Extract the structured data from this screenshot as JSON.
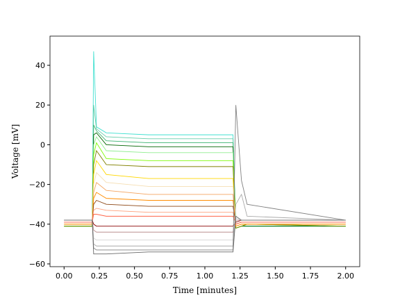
{
  "chart_data": {
    "type": "line",
    "x_label": "Time [minutes]",
    "y_label": "Voltage [mV]",
    "xlim": [
      -0.1,
      2.1
    ],
    "ylim": [
      -61.4,
      54.7
    ],
    "xticks": [
      {
        "value": 0,
        "label": "0.00"
      },
      {
        "value": 0.25,
        "label": "0.25"
      },
      {
        "value": 0.5,
        "label": "0.50"
      },
      {
        "value": 0.75,
        "label": "0.75"
      },
      {
        "value": 1,
        "label": "1.00"
      },
      {
        "value": 1.25,
        "label": "1.25"
      },
      {
        "value": 1.5,
        "label": "1.50"
      },
      {
        "value": 1.75,
        "label": "1.75"
      },
      {
        "value": 2,
        "label": "2.00"
      }
    ],
    "yticks": [
      {
        "value": -60,
        "label": "−60"
      },
      {
        "value": -40,
        "label": "−40"
      },
      {
        "value": -20,
        "label": "−20"
      },
      0,
      20,
      40
    ],
    "x": [
      0,
      0.2,
      0.21,
      0.23,
      0.3,
      0.6,
      1.2,
      1.22,
      1.26,
      1.3,
      2.0
    ],
    "series": [
      {
        "color": "#40e0d0",
        "values": [
          -41,
          -41,
          47,
          9,
          6,
          5,
          5,
          -42,
          -41,
          -41,
          -41
        ]
      },
      {
        "color": "#66cdaa",
        "values": [
          -41,
          -41,
          20,
          8,
          4,
          3,
          3,
          -42,
          -41,
          -41,
          -41
        ]
      },
      {
        "color": "#3cb371",
        "values": [
          -41,
          -41,
          10,
          7,
          2,
          1,
          1,
          -42,
          -41,
          -41,
          -41
        ]
      },
      {
        "color": "#006400",
        "values": [
          -41,
          -41,
          5,
          6,
          0,
          -1,
          -1,
          -42,
          -41,
          -41,
          -41
        ]
      },
      {
        "color": "#90ee90",
        "values": [
          -41,
          -41,
          0,
          4,
          -3,
          -4,
          -4,
          -42,
          -41,
          -40,
          -41
        ]
      },
      {
        "color": "#7cfc00",
        "values": [
          -41,
          -41,
          -5,
          1,
          -7,
          -8,
          -8,
          -42,
          -41,
          -40,
          -41
        ]
      },
      {
        "color": "#808000",
        "values": [
          -41,
          -41,
          -10,
          -3,
          -10,
          -11,
          -11,
          -42,
          -41,
          -40,
          -41
        ]
      },
      {
        "color": "#ffd700",
        "values": [
          -40,
          -40,
          -15,
          -8,
          -15,
          -17,
          -17,
          -41,
          -40,
          -40,
          -40
        ]
      },
      {
        "color": "#f5deb3",
        "values": [
          -40,
          -40,
          -20,
          -14,
          -19,
          -21,
          -21,
          -41,
          -40,
          -40,
          -40
        ]
      },
      {
        "color": "#f4a460",
        "values": [
          -40,
          -40,
          -24,
          -19,
          -23,
          -25,
          -25,
          -41,
          -40,
          -40,
          -40
        ]
      },
      {
        "color": "#ff8c00",
        "values": [
          -40,
          -40,
          -27,
          -24,
          -27,
          -28,
          -28,
          -41,
          -40,
          -40,
          -40
        ]
      },
      {
        "color": "#8b4513",
        "values": [
          -39,
          -39,
          -30,
          -28,
          -30,
          -31,
          -31,
          -40,
          -39,
          -39,
          -39
        ]
      },
      {
        "color": "#ffa07a",
        "values": [
          -39,
          -39,
          -33,
          -32,
          -33,
          -34,
          -34,
          -40,
          -39,
          -39,
          -39
        ]
      },
      {
        "color": "#ff6347",
        "values": [
          -39,
          -39,
          -35,
          -35,
          -36,
          -36,
          -36,
          -40,
          -39,
          -39,
          -39
        ]
      },
      {
        "color": "#8b0000",
        "values": [
          -38,
          -38,
          -40,
          -41,
          -41,
          -41,
          -41,
          -39,
          -38,
          -38,
          -38
        ]
      },
      {
        "color": "#bc8f8f",
        "values": [
          -38,
          -38,
          -43,
          -44,
          -44,
          -44,
          -44,
          -38,
          -38,
          -38,
          -38
        ]
      },
      {
        "color": "#d3d3d3",
        "values": [
          -38,
          -38,
          -47,
          -48,
          -48,
          -48,
          -48,
          -37,
          -38,
          -38,
          -38
        ]
      },
      {
        "color": "#a9a9a9",
        "values": [
          -38,
          -38,
          -50,
          -51,
          -51,
          -51,
          -51,
          -30,
          -25,
          -36,
          -38
        ]
      },
      {
        "color": "#808080",
        "values": [
          -38,
          -38,
          -52,
          -53,
          -53,
          -53,
          -53,
          20,
          -18,
          -30,
          -38
        ]
      },
      {
        "color": "#696969",
        "values": [
          -38,
          -38,
          -55,
          -55,
          -55,
          -54,
          -54,
          -36,
          -38,
          -38,
          -38
        ]
      }
    ]
  }
}
